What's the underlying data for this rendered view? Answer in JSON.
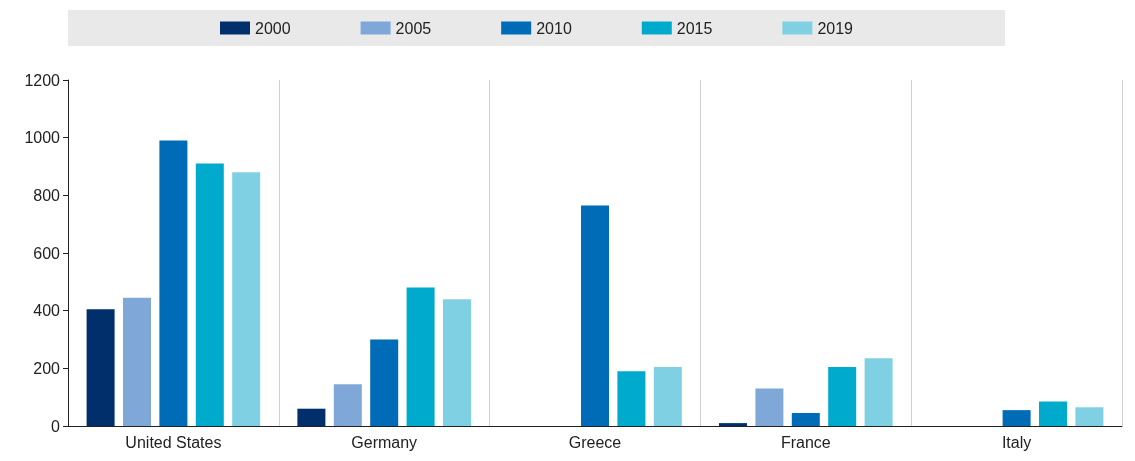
{
  "chart_data": {
    "type": "bar",
    "categories": [
      "United States",
      "Germany",
      "Greece",
      "France",
      "Italy"
    ],
    "series": [
      {
        "name": "2000",
        "color": "#002f6c",
        "values": [
          405,
          60,
          null,
          10,
          null
        ]
      },
      {
        "name": "2005",
        "color": "#7fa8d9",
        "values": [
          445,
          145,
          null,
          130,
          null
        ]
      },
      {
        "name": "2010",
        "color": "#006bb6",
        "values": [
          990,
          300,
          765,
          45,
          55
        ]
      },
      {
        "name": "2015",
        "color": "#00aacc",
        "values": [
          910,
          480,
          190,
          205,
          85
        ]
      },
      {
        "name": "2019",
        "color": "#80d0e3",
        "values": [
          880,
          440,
          205,
          235,
          65
        ]
      }
    ],
    "ylim": [
      0,
      1200
    ],
    "yticks": [
      0,
      200,
      400,
      600,
      800,
      1000,
      1200
    ],
    "grid": "x",
    "legend": "top"
  }
}
